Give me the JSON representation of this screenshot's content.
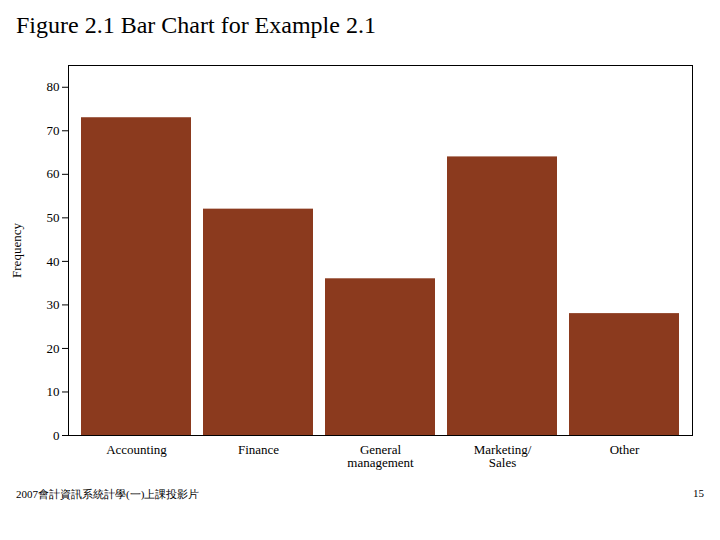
{
  "chart_data": {
    "type": "bar",
    "title": "Figure 2.1 Bar Chart for Example 2.1",
    "categories": [
      "Accounting",
      "Finance",
      "General\nmanagement",
      "Marketing/\nSales",
      "Other"
    ],
    "values": [
      73,
      52,
      36,
      64,
      28
    ],
    "color": "#8B3A1E",
    "ylabel": "Frequency",
    "ylim": [
      0,
      85
    ],
    "yticks": [
      0,
      10,
      20,
      30,
      40,
      50,
      60,
      70,
      80
    ],
    "grid": false,
    "annotations": [
      "2007會計資訊系統計學(一)上課投影片",
      "15"
    ]
  }
}
